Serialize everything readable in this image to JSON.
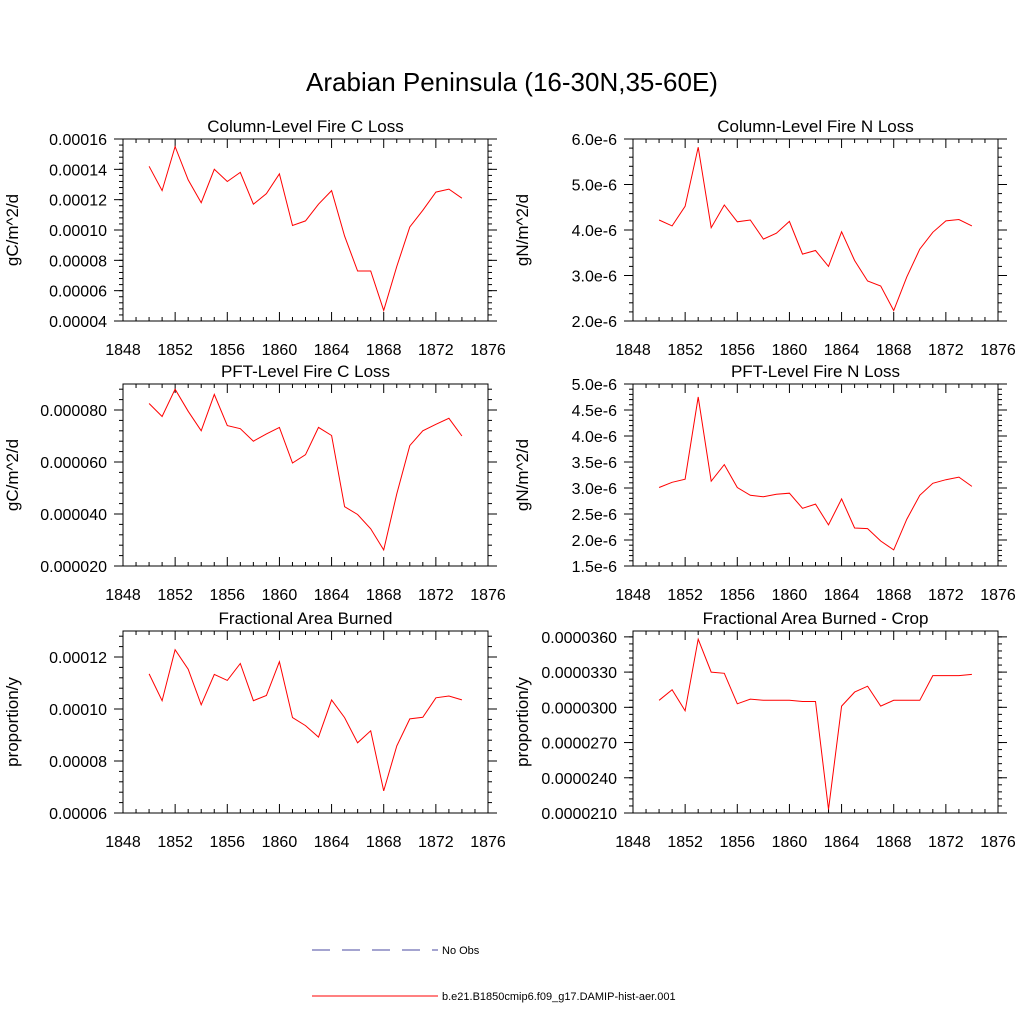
{
  "figure_title": "Arabian Peninsula (16-30N,35-60E)",
  "colors": {
    "series": "#ff0000",
    "obs": "#4a4aa0",
    "axis": "#000000"
  },
  "legend": {
    "obs_label": "No Obs",
    "series_label": "b.e21.B1850cmip6.f09_g17.DAMIP-hist-aer.001"
  },
  "chart_data": [
    {
      "type": "line",
      "title": "Column-Level Fire C Loss",
      "ylabel": "gC/m^2/d",
      "xlim": [
        1848,
        1876
      ],
      "xticks": [
        "1848",
        "1852",
        "1856",
        "1860",
        "1864",
        "1868",
        "1872",
        "1876"
      ],
      "ylim": [
        4e-05,
        0.00016
      ],
      "yticks": [
        "0.00004",
        "0.00006",
        "0.00008",
        "0.00010",
        "0.00012",
        "0.00014",
        "0.00016"
      ],
      "x": [
        1850,
        1851,
        1852,
        1853,
        1854,
        1855,
        1856,
        1857,
        1858,
        1859,
        1860,
        1861,
        1862,
        1863,
        1864,
        1865,
        1866,
        1867,
        1868,
        1869,
        1870,
        1871,
        1872,
        1873,
        1874
      ],
      "series": [
        {
          "values": [
            0.000142,
            0.000126,
            0.000155,
            0.000133,
            0.000118,
            0.00014,
            0.000132,
            0.000138,
            0.000117,
            0.000124,
            0.000137,
            0.000103,
            0.000106,
            0.000117,
            0.000126,
            9.6e-05,
            7.3e-05,
            7.3e-05,
            4.7e-05,
            7.6e-05,
            0.000102,
            0.000113,
            0.000125,
            0.000127,
            0.000121
          ]
        }
      ]
    },
    {
      "type": "line",
      "title": "Column-Level Fire N Loss",
      "ylabel": "gN/m^2/d",
      "xlim": [
        1848,
        1876
      ],
      "xticks": [
        "1848",
        "1852",
        "1856",
        "1860",
        "1864",
        "1868",
        "1872",
        "1876"
      ],
      "ylim": [
        2e-06,
        6e-06
      ],
      "yticks": [
        "2.0e-6",
        "3.0e-6",
        "4.0e-6",
        "5.0e-6",
        "6.0e-6"
      ],
      "x": [
        1850,
        1851,
        1852,
        1853,
        1854,
        1855,
        1856,
        1857,
        1858,
        1859,
        1860,
        1861,
        1862,
        1863,
        1864,
        1865,
        1866,
        1867,
        1868,
        1869,
        1870,
        1871,
        1872,
        1873,
        1874
      ],
      "series": [
        {
          "values": [
            4.22e-06,
            4.09e-06,
            4.52e-06,
            5.82e-06,
            4.05e-06,
            4.55e-06,
            4.18e-06,
            4.22e-06,
            3.8e-06,
            3.93e-06,
            4.19e-06,
            3.47e-06,
            3.55e-06,
            3.2e-06,
            3.96e-06,
            3.33e-06,
            2.88e-06,
            2.77e-06,
            2.23e-06,
            2.97e-06,
            3.58e-06,
            3.95e-06,
            4.2e-06,
            4.23e-06,
            4.09e-06
          ]
        }
      ]
    },
    {
      "type": "line",
      "title": "PFT-Level Fire C Loss",
      "ylabel": "gC/m^2/d",
      "xlim": [
        1848,
        1876
      ],
      "xticks": [
        "1848",
        "1852",
        "1856",
        "1860",
        "1864",
        "1868",
        "1872",
        "1876"
      ],
      "ylim": [
        2e-05,
        9e-05
      ],
      "yticks": [
        "0.000020",
        "0.000040",
        "0.000060",
        "0.000080"
      ],
      "x": [
        1850,
        1851,
        1852,
        1853,
        1854,
        1855,
        1856,
        1857,
        1858,
        1859,
        1860,
        1861,
        1862,
        1863,
        1864,
        1865,
        1866,
        1867,
        1868,
        1869,
        1870,
        1871,
        1872,
        1873,
        1874
      ],
      "series": [
        {
          "values": [
            8.25e-05,
            7.75e-05,
            8.8e-05,
            7.95e-05,
            7.2e-05,
            8.6e-05,
            7.4e-05,
            7.28e-05,
            6.8e-05,
            7.08e-05,
            7.33e-05,
            5.96e-05,
            6.28e-05,
            7.33e-05,
            7.02e-05,
            4.28e-05,
            3.98e-05,
            3.43e-05,
            2.62e-05,
            4.78e-05,
            6.63e-05,
            7.2e-05,
            7.45e-05,
            7.68e-05,
            7e-05
          ]
        }
      ]
    },
    {
      "type": "line",
      "title": "PFT-Level Fire N Loss",
      "ylabel": "gN/m^2/d",
      "xlim": [
        1848,
        1876
      ],
      "xticks": [
        "1848",
        "1852",
        "1856",
        "1860",
        "1864",
        "1868",
        "1872",
        "1876"
      ],
      "ylim": [
        1.5e-06,
        5e-06
      ],
      "yticks": [
        "1.5e-6",
        "2.0e-6",
        "2.5e-6",
        "3.0e-6",
        "3.5e-6",
        "4.0e-6",
        "4.5e-6",
        "5.0e-6"
      ],
      "x": [
        1850,
        1851,
        1852,
        1853,
        1854,
        1855,
        1856,
        1857,
        1858,
        1859,
        1860,
        1861,
        1862,
        1863,
        1864,
        1865,
        1866,
        1867,
        1868,
        1869,
        1870,
        1871,
        1872,
        1873,
        1874
      ],
      "series": [
        {
          "values": [
            3.01e-06,
            3.11e-06,
            3.17e-06,
            4.75e-06,
            3.13e-06,
            3.45e-06,
            3.01e-06,
            2.86e-06,
            2.83e-06,
            2.88e-06,
            2.9e-06,
            2.61e-06,
            2.69e-06,
            2.29e-06,
            2.79e-06,
            2.23e-06,
            2.22e-06,
            1.98e-06,
            1.81e-06,
            2.4e-06,
            2.86e-06,
            3.09e-06,
            3.16e-06,
            3.21e-06,
            3.03e-06
          ]
        }
      ]
    },
    {
      "type": "line",
      "title": "Fractional Area Burned",
      "ylabel": "proportion/y",
      "xlim": [
        1848,
        1876
      ],
      "xticks": [
        "1848",
        "1852",
        "1856",
        "1860",
        "1864",
        "1868",
        "1872",
        "1876"
      ],
      "ylim": [
        6e-05,
        0.00013
      ],
      "yticks": [
        "0.00006",
        "0.00008",
        "0.00010",
        "0.00012"
      ],
      "x": [
        1850,
        1851,
        1852,
        1853,
        1854,
        1855,
        1856,
        1857,
        1858,
        1859,
        1860,
        1861,
        1862,
        1863,
        1864,
        1865,
        1866,
        1867,
        1868,
        1869,
        1870,
        1871,
        1872,
        1873,
        1874
      ],
      "series": [
        {
          "values": [
            0.0001135,
            0.0001032,
            0.0001228,
            0.0001153,
            0.0001016,
            0.0001133,
            0.000111,
            0.0001175,
            0.0001032,
            0.0001052,
            0.0001182,
            9.67e-05,
            9.36e-05,
            8.92e-05,
            0.0001035,
            9.67e-05,
            8.7e-05,
            9.16e-05,
            6.85e-05,
            8.58e-05,
            9.62e-05,
            9.68e-05,
            0.0001043,
            0.000105,
            0.0001035
          ]
        }
      ]
    },
    {
      "type": "line",
      "title": "Fractional Area Burned - Crop",
      "ylabel": "proportion/y",
      "xlim": [
        1848,
        1876
      ],
      "xticks": [
        "1848",
        "1852",
        "1856",
        "1860",
        "1864",
        "1868",
        "1872",
        "1876"
      ],
      "ylim": [
        2.1e-05,
        3.65e-05
      ],
      "yticks": [
        "0.0000210",
        "0.0000240",
        "0.0000270",
        "0.0000300",
        "0.0000330",
        "0.0000360"
      ],
      "x": [
        1850,
        1851,
        1852,
        1853,
        1854,
        1855,
        1856,
        1857,
        1858,
        1859,
        1860,
        1861,
        1862,
        1863,
        1864,
        1865,
        1866,
        1867,
        1868,
        1869,
        1870,
        1871,
        1872,
        1873,
        1874
      ],
      "series": [
        {
          "values": [
            3.06e-05,
            3.15e-05,
            2.97e-05,
            3.58e-05,
            3.3e-05,
            3.29e-05,
            3.03e-05,
            3.07e-05,
            3.06e-05,
            3.06e-05,
            3.06e-05,
            3.05e-05,
            3.05e-05,
            2.13e-05,
            3.01e-05,
            3.13e-05,
            3.18e-05,
            3.01e-05,
            3.06e-05,
            3.06e-05,
            3.06e-05,
            3.27e-05,
            3.27e-05,
            3.27e-05,
            3.28e-05
          ]
        }
      ]
    }
  ]
}
